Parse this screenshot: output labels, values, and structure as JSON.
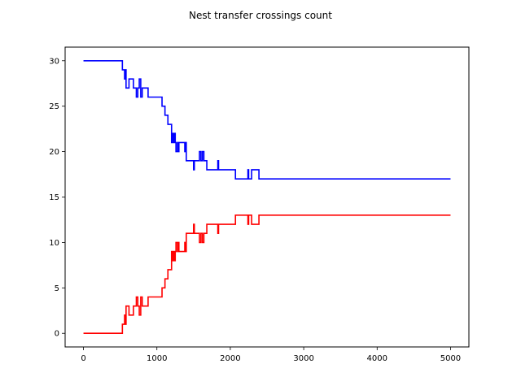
{
  "chart_data": {
    "type": "line",
    "title": "Nest transfer crossings count",
    "xlabel": "",
    "ylabel": "",
    "xlim": [
      -250,
      5250
    ],
    "ylim": [
      -1.5,
      31.5
    ],
    "xticks": [
      0,
      1000,
      2000,
      3000,
      4000,
      5000
    ],
    "yticks": [
      0,
      5,
      10,
      15,
      20,
      25,
      30
    ],
    "grid": false,
    "series": [
      {
        "color": "#0000ff",
        "step": true,
        "x": [
          0,
          530,
          560,
          570,
          580,
          620,
          640,
          680,
          700,
          720,
          740,
          760,
          780,
          800,
          880,
          960,
          1070,
          1080,
          1110,
          1150,
          1200,
          1210,
          1220,
          1225,
          1230,
          1240,
          1250,
          1260,
          1280,
          1290,
          1300,
          1380,
          1390,
          1400,
          1500,
          1510,
          1520,
          1560,
          1580,
          1600,
          1620,
          1640,
          1680,
          1830,
          1840,
          1850,
          2070,
          2080,
          2240,
          2250,
          2260,
          2290,
          2300,
          2390,
          2400,
          5000
        ],
        "values": [
          30,
          29,
          28,
          29,
          27,
          28,
          28,
          27,
          27,
          26,
          27,
          28,
          26,
          27,
          26,
          26,
          25,
          25,
          24,
          23,
          21,
          22,
          21,
          22,
          21,
          22,
          21,
          20,
          21,
          20,
          21,
          20,
          21,
          19,
          18,
          19,
          19,
          19,
          20,
          19,
          20,
          19,
          18,
          19,
          18,
          18,
          17,
          17,
          18,
          17,
          17,
          18,
          18,
          17,
          17,
          17
        ]
      },
      {
        "color": "#ff0000",
        "step": true,
        "x": [
          0,
          530,
          560,
          570,
          580,
          620,
          640,
          680,
          700,
          720,
          740,
          760,
          780,
          800,
          880,
          960,
          1070,
          1080,
          1110,
          1150,
          1200,
          1210,
          1220,
          1225,
          1230,
          1240,
          1250,
          1260,
          1280,
          1290,
          1300,
          1380,
          1390,
          1400,
          1500,
          1510,
          1520,
          1560,
          1580,
          1600,
          1620,
          1640,
          1680,
          1830,
          1840,
          1850,
          2070,
          2080,
          2240,
          2250,
          2260,
          2290,
          2300,
          2390,
          2400,
          5000
        ],
        "values": [
          0,
          1,
          2,
          1,
          3,
          2,
          2,
          3,
          3,
          4,
          3,
          2,
          4,
          3,
          4,
          4,
          5,
          5,
          6,
          7,
          9,
          8,
          9,
          8,
          9,
          8,
          9,
          10,
          9,
          10,
          9,
          10,
          9,
          11,
          12,
          11,
          11,
          11,
          10,
          11,
          10,
          11,
          12,
          11,
          12,
          12,
          13,
          13,
          12,
          13,
          13,
          12,
          12,
          13,
          13,
          13
        ]
      }
    ]
  }
}
